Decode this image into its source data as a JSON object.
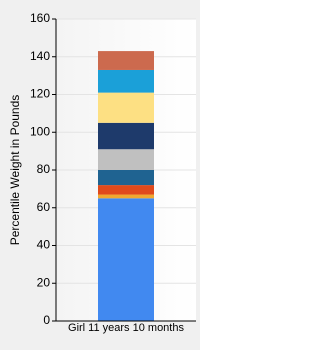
{
  "chart_data": {
    "type": "stacked-bar",
    "y_label": "Percentile Weight in Pounds",
    "categories": [
      "Girl 11 years 10 months"
    ],
    "series": [
      {
        "color": "#4189f0",
        "values": [
          65
        ]
      },
      {
        "color": "#f0a830",
        "values": [
          2
        ]
      },
      {
        "color": "#e04a1c",
        "values": [
          5
        ]
      },
      {
        "color": "#1f6391",
        "values": [
          8
        ]
      },
      {
        "color": "#c0c0c0",
        "values": [
          11
        ]
      },
      {
        "color": "#1e3a6b",
        "values": [
          14
        ]
      },
      {
        "color": "#fde083",
        "values": [
          16
        ]
      },
      {
        "color": "#1ba0d8",
        "values": [
          12
        ]
      },
      {
        "color": "#cc6a4e",
        "values": [
          10
        ]
      }
    ],
    "ylim": [
      0,
      160
    ],
    "yticks": [
      0,
      20,
      40,
      60,
      80,
      100,
      120,
      140,
      160
    ],
    "grid": true
  }
}
